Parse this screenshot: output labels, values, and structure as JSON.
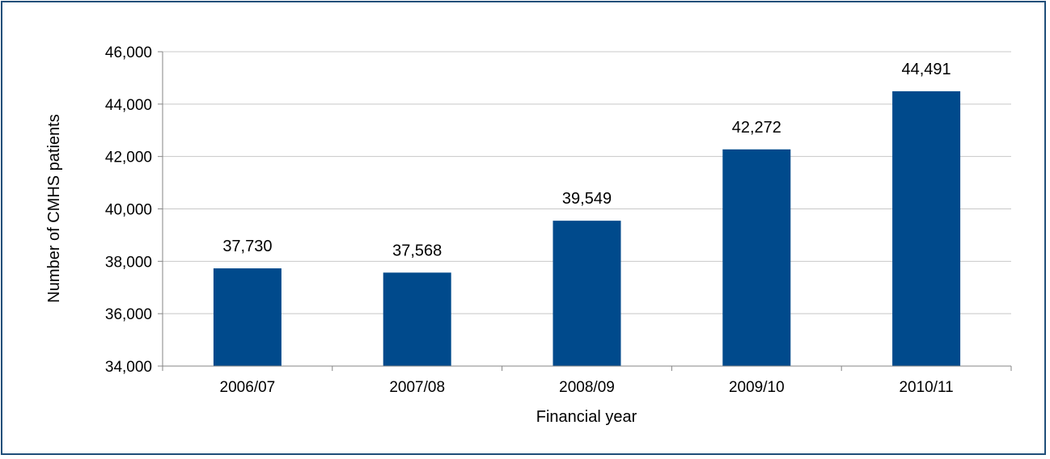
{
  "chart_data": {
    "type": "bar",
    "title": "",
    "xlabel": "Financial year",
    "ylabel": "Number of CMHS patients",
    "categories": [
      "2006/07",
      "2007/08",
      "2008/09",
      "2009/10",
      "2010/11"
    ],
    "values": [
      37730,
      37568,
      39549,
      42272,
      44491
    ],
    "value_labels": [
      "37,730",
      "37,568",
      "39,549",
      "42,272",
      "44,491"
    ],
    "ylim": [
      34000,
      46000
    ],
    "yticks": [
      34000,
      36000,
      38000,
      40000,
      42000,
      44000,
      46000
    ],
    "ytick_labels": [
      "34,000",
      "36,000",
      "38,000",
      "40,000",
      "42,000",
      "44,000",
      "46,000"
    ],
    "grid": true,
    "legend": "none",
    "colors": {
      "bar": "#004a8c",
      "grid": "#c8c8c8",
      "axis": "#868686",
      "frame": "#1f4e79"
    }
  }
}
